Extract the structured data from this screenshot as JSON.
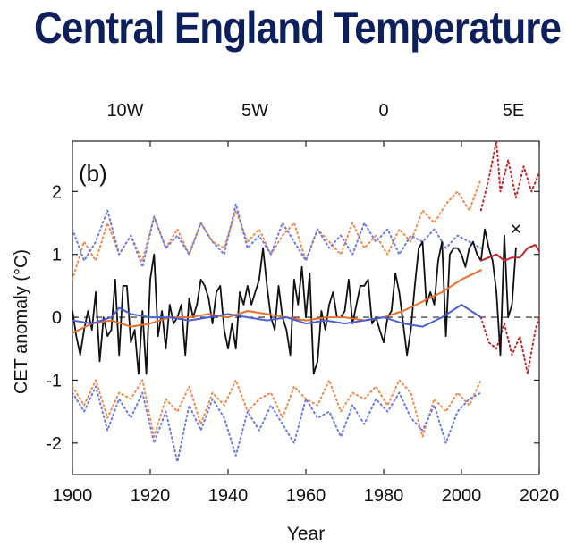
{
  "title": "Central England Temperature",
  "top_axis_labels": [
    "10W",
    "5W",
    "0",
    "5E"
  ],
  "chart_data": {
    "type": "line",
    "panel_label": "(b)",
    "xlabel": "Year",
    "ylabel": "CET anomaly (°C)",
    "xlim": [
      1900,
      2020
    ],
    "ylim": [
      -2.5,
      2.8
    ],
    "xticks": [
      1900,
      1920,
      1940,
      1960,
      1980,
      2000,
      2020
    ],
    "yticks": [
      -2,
      -1,
      0,
      1,
      2
    ],
    "zero_line": "dashed",
    "grid": false,
    "marker": {
      "symbol": "×",
      "x": 2014,
      "y": 1.4
    },
    "colors": {
      "black": "#111111",
      "orange": "#e8702a",
      "blue": "#4a5fd4",
      "red": "#c0262c",
      "orange_dotted": "#f08a4b",
      "blue_dotted": "#6a7ae8",
      "red_dotted": "#c0262c"
    },
    "series": [
      {
        "color": "black",
        "style": "solid",
        "x": [
          1900,
          1901,
          1902,
          1903,
          1904,
          1905,
          1906,
          1907,
          1908,
          1909,
          1910,
          1911,
          1912,
          1913,
          1914,
          1915,
          1916,
          1917,
          1918,
          1919,
          1920,
          1921,
          1922,
          1923,
          1924,
          1925,
          1926,
          1927,
          1928,
          1929,
          1930,
          1931,
          1932,
          1933,
          1934,
          1935,
          1936,
          1937,
          1938,
          1939,
          1940,
          1941,
          1942,
          1943,
          1944,
          1945,
          1946,
          1947,
          1948,
          1949,
          1950,
          1951,
          1952,
          1953,
          1954,
          1955,
          1956,
          1957,
          1958,
          1959,
          1960,
          1961,
          1962,
          1963,
          1964,
          1965,
          1966,
          1967,
          1968,
          1969,
          1970,
          1971,
          1972,
          1973,
          1974,
          1975,
          1976,
          1977,
          1978,
          1979,
          1980,
          1981,
          1982,
          1983,
          1984,
          1985,
          1986,
          1987,
          1988,
          1989,
          1990,
          1991,
          1992,
          1993,
          1994,
          1995,
          1996,
          1997,
          1998,
          1999,
          2000,
          2001,
          2002,
          2003,
          2004,
          2005,
          2006,
          2007,
          2008,
          2009,
          2010,
          2011,
          2012,
          2013,
          2014
        ],
        "y": [
          0.1,
          -0.3,
          -0.6,
          -0.2,
          0.1,
          -0.2,
          0.4,
          -0.7,
          0.0,
          -0.3,
          -0.2,
          0.6,
          -0.6,
          0.5,
          0.5,
          -0.4,
          -0.2,
          -0.9,
          0.1,
          -0.9,
          0.6,
          1.0,
          -0.3,
          0.1,
          -0.5,
          0.2,
          -0.1,
          0.0,
          0.2,
          -0.6,
          0.3,
          0.0,
          0.2,
          0.6,
          0.5,
          0.3,
          -0.1,
          0.4,
          0.5,
          -0.2,
          -0.5,
          -0.1,
          -0.5,
          0.4,
          0.2,
          0.5,
          0.2,
          0.4,
          0.6,
          1.1,
          0.5,
          0.0,
          -0.2,
          0.5,
          0.0,
          -0.2,
          -0.6,
          0.6,
          0.2,
          0.8,
          0.0,
          0.7,
          -0.9,
          -0.7,
          0.1,
          -0.2,
          0.2,
          0.4,
          0.0,
          0.0,
          0.1,
          0.6,
          -0.1,
          0.2,
          0.5,
          0.5,
          0.6,
          -0.1,
          0.0,
          -0.2,
          -0.4,
          0.0,
          0.1,
          0.7,
          0.4,
          -0.1,
          -0.6,
          -0.2,
          0.5,
          1.1,
          1.2,
          0.2,
          0.4,
          0.2,
          0.9,
          1.2,
          -0.3,
          1.0,
          1.1,
          1.1,
          1.0,
          0.8,
          1.1,
          1.2,
          1.0,
          0.9,
          1.4,
          1.1,
          0.9,
          0.4,
          -0.6,
          1.3,
          0.0,
          0.2,
          1.1
        ]
      },
      {
        "color": "orange",
        "style": "solid",
        "x": [
          1900,
          1905,
          1910,
          1915,
          1920,
          1925,
          1930,
          1935,
          1940,
          1945,
          1950,
          1955,
          1960,
          1965,
          1970,
          1975,
          1980,
          1985,
          1990,
          1995,
          2000,
          2005
        ],
        "y": [
          -0.25,
          -0.1,
          -0.05,
          -0.15,
          -0.1,
          0.0,
          0.0,
          0.05,
          0.0,
          0.1,
          0.05,
          0.0,
          -0.05,
          0.0,
          0.0,
          -0.05,
          0.0,
          0.1,
          0.25,
          0.4,
          0.6,
          0.75
        ]
      },
      {
        "color": "blue",
        "style": "solid",
        "x": [
          1900,
          1905,
          1910,
          1912,
          1915,
          1920,
          1925,
          1930,
          1935,
          1940,
          1945,
          1950,
          1955,
          1960,
          1965,
          1970,
          1975,
          1980,
          1985,
          1990,
          1995,
          2000,
          2005
        ],
        "y": [
          -0.05,
          -0.1,
          0.0,
          0.15,
          0.05,
          0.0,
          0.0,
          -0.05,
          0.0,
          0.05,
          0.0,
          -0.05,
          0.0,
          -0.1,
          -0.05,
          -0.1,
          -0.05,
          0.0,
          -0.1,
          -0.15,
          0.0,
          0.2,
          0.0
        ]
      },
      {
        "color": "red",
        "style": "solid",
        "x": [
          2005,
          2007,
          2009,
          2011,
          2013,
          2015,
          2017,
          2019,
          2020
        ],
        "y": [
          0.9,
          0.95,
          1.0,
          0.9,
          0.95,
          0.95,
          1.1,
          1.15,
          1.05
        ]
      },
      {
        "color": "orange_dotted",
        "style": "dotted",
        "x": [
          1900,
          1903,
          1906,
          1909,
          1912,
          1915,
          1918,
          1921,
          1924,
          1927,
          1930,
          1933,
          1936,
          1939,
          1942,
          1945,
          1948,
          1951,
          1954,
          1957,
          1960,
          1963,
          1966,
          1969,
          1972,
          1975,
          1978,
          1981,
          1984,
          1987,
          1990,
          1993,
          1996,
          1999,
          2002,
          2005
        ],
        "y": [
          0.6,
          1.2,
          0.9,
          1.5,
          1.0,
          1.3,
          0.9,
          1.6,
          1.1,
          1.4,
          1.0,
          1.5,
          1.2,
          1.1,
          1.7,
          1.2,
          1.4,
          1.0,
          1.3,
          1.5,
          0.9,
          1.4,
          1.2,
          1.0,
          1.5,
          1.1,
          1.3,
          1.0,
          1.4,
          1.2,
          1.7,
          1.5,
          1.8,
          2.0,
          1.7,
          2.2
        ]
      },
      {
        "color": "orange_dotted",
        "style": "dotted",
        "x": [
          1900,
          1903,
          1906,
          1909,
          1912,
          1915,
          1918,
          1921,
          1924,
          1927,
          1930,
          1933,
          1936,
          1939,
          1942,
          1945,
          1948,
          1951,
          1954,
          1957,
          1960,
          1963,
          1966,
          1969,
          1972,
          1975,
          1978,
          1981,
          1984,
          1987,
          1990,
          1993,
          1996,
          1999,
          2002,
          2005
        ],
        "y": [
          -1.1,
          -1.4,
          -1.0,
          -1.6,
          -1.2,
          -1.3,
          -1.0,
          -1.9,
          -1.3,
          -1.5,
          -1.1,
          -1.7,
          -1.2,
          -1.4,
          -1.0,
          -1.5,
          -1.3,
          -1.2,
          -1.6,
          -1.1,
          -1.3,
          -1.4,
          -1.0,
          -1.5,
          -1.2,
          -1.3,
          -1.1,
          -1.4,
          -1.0,
          -1.2,
          -1.9,
          -1.3,
          -1.5,
          -1.2,
          -1.4,
          -1.0
        ]
      },
      {
        "color": "blue_dotted",
        "style": "dotted",
        "x": [
          1900,
          1903,
          1906,
          1909,
          1912,
          1915,
          1918,
          1921,
          1924,
          1927,
          1930,
          1933,
          1936,
          1939,
          1942,
          1945,
          1948,
          1951,
          1954,
          1957,
          1960,
          1963,
          1966,
          1969,
          1972,
          1975,
          1978,
          1981,
          1984,
          1987,
          1990,
          1993,
          1996,
          1999,
          2002,
          2005
        ],
        "y": [
          1.4,
          0.9,
          1.2,
          1.7,
          1.0,
          1.3,
          0.8,
          1.6,
          1.1,
          1.3,
          1.0,
          1.5,
          1.2,
          1.0,
          1.8,
          1.1,
          1.3,
          1.0,
          1.5,
          1.2,
          0.9,
          1.4,
          1.1,
          1.3,
          1.0,
          1.5,
          1.2,
          1.4,
          1.0,
          1.3,
          1.2,
          1.4,
          1.1,
          1.3,
          1.2,
          1.1
        ]
      },
      {
        "color": "blue_dotted",
        "style": "dotted",
        "x": [
          1900,
          1903,
          1906,
          1909,
          1912,
          1915,
          1918,
          1921,
          1924,
          1927,
          1930,
          1933,
          1936,
          1939,
          1942,
          1945,
          1948,
          1951,
          1954,
          1957,
          1960,
          1963,
          1966,
          1969,
          1972,
          1975,
          1978,
          1981,
          1984,
          1987,
          1990,
          1993,
          1996,
          1999,
          2002,
          2005
        ],
        "y": [
          -1.2,
          -1.5,
          -1.1,
          -1.8,
          -1.3,
          -1.6,
          -1.2,
          -2.0,
          -1.5,
          -2.3,
          -1.4,
          -1.8,
          -1.3,
          -1.6,
          -2.2,
          -1.5,
          -1.8,
          -1.4,
          -1.7,
          -2.0,
          -1.3,
          -1.6,
          -1.5,
          -1.9,
          -1.4,
          -1.7,
          -1.3,
          -1.5,
          -1.2,
          -1.6,
          -1.8,
          -1.4,
          -2.0,
          -1.5,
          -1.3,
          -1.2
        ]
      },
      {
        "color": "red_dotted",
        "style": "dotted",
        "x": [
          2005,
          2007,
          2009,
          2010,
          2012,
          2014,
          2016,
          2018,
          2020
        ],
        "y": [
          1.7,
          2.2,
          2.8,
          2.0,
          2.5,
          1.9,
          2.4,
          2.0,
          2.3
        ]
      },
      {
        "color": "red_dotted",
        "style": "dotted",
        "x": [
          2005,
          2007,
          2009,
          2011,
          2013,
          2015,
          2017,
          2019,
          2020
        ],
        "y": [
          0.0,
          -0.4,
          -0.5,
          -0.1,
          -0.6,
          -0.3,
          -0.9,
          -0.2,
          0.0
        ]
      }
    ]
  }
}
